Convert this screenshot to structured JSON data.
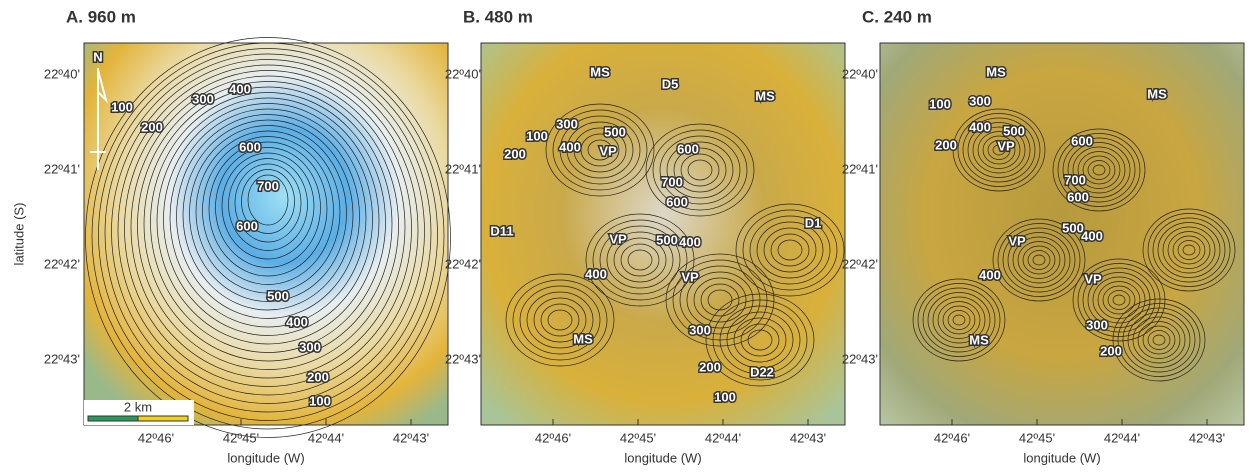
{
  "y_label": "latitude (S)",
  "panels": [
    {
      "title": "A. 960 m",
      "x_label": "longitude (W)",
      "lat_ticks": [
        "22º40'",
        "22º41'",
        "22º42'",
        "22º43'"
      ],
      "lon_ticks": [
        "42º46'",
        "42º45'",
        "42º44'",
        "42º43'"
      ],
      "labels": [
        "100",
        "300",
        "400",
        "200",
        "600",
        "700",
        "600",
        "500",
        "400",
        "300",
        "200",
        "100"
      ],
      "north": "N",
      "scale_bar": "2 km"
    },
    {
      "title": "B. 480 m",
      "x_label": "longitude (W)",
      "lat_ticks": [
        "22º40'",
        "22º41'",
        "22º42'",
        "22º43'"
      ],
      "lon_ticks": [
        "42º46'",
        "42º45'",
        "42º44'",
        "42º43'"
      ],
      "labels": [
        "MS",
        "D5",
        "MS",
        "100",
        "300",
        "400",
        "500",
        "200",
        "VP",
        "600",
        "700",
        "600",
        "D11",
        "D1",
        "VP",
        "500",
        "400",
        "VP",
        "400",
        "MS",
        "300",
        "200",
        "D22",
        "100"
      ]
    },
    {
      "title": "C. 240 m",
      "x_label": "longitude (W)",
      "lon_ticks": [
        "42º46'",
        "42º45'",
        "42º44'",
        "42º43'"
      ],
      "labels": [
        "MS",
        "MS",
        "100",
        "300",
        "400",
        "500",
        "200",
        "VP",
        "600",
        "700",
        "600",
        "VP",
        "500",
        "400",
        "VP",
        "400",
        "MS",
        "300",
        "200"
      ]
    }
  ]
}
